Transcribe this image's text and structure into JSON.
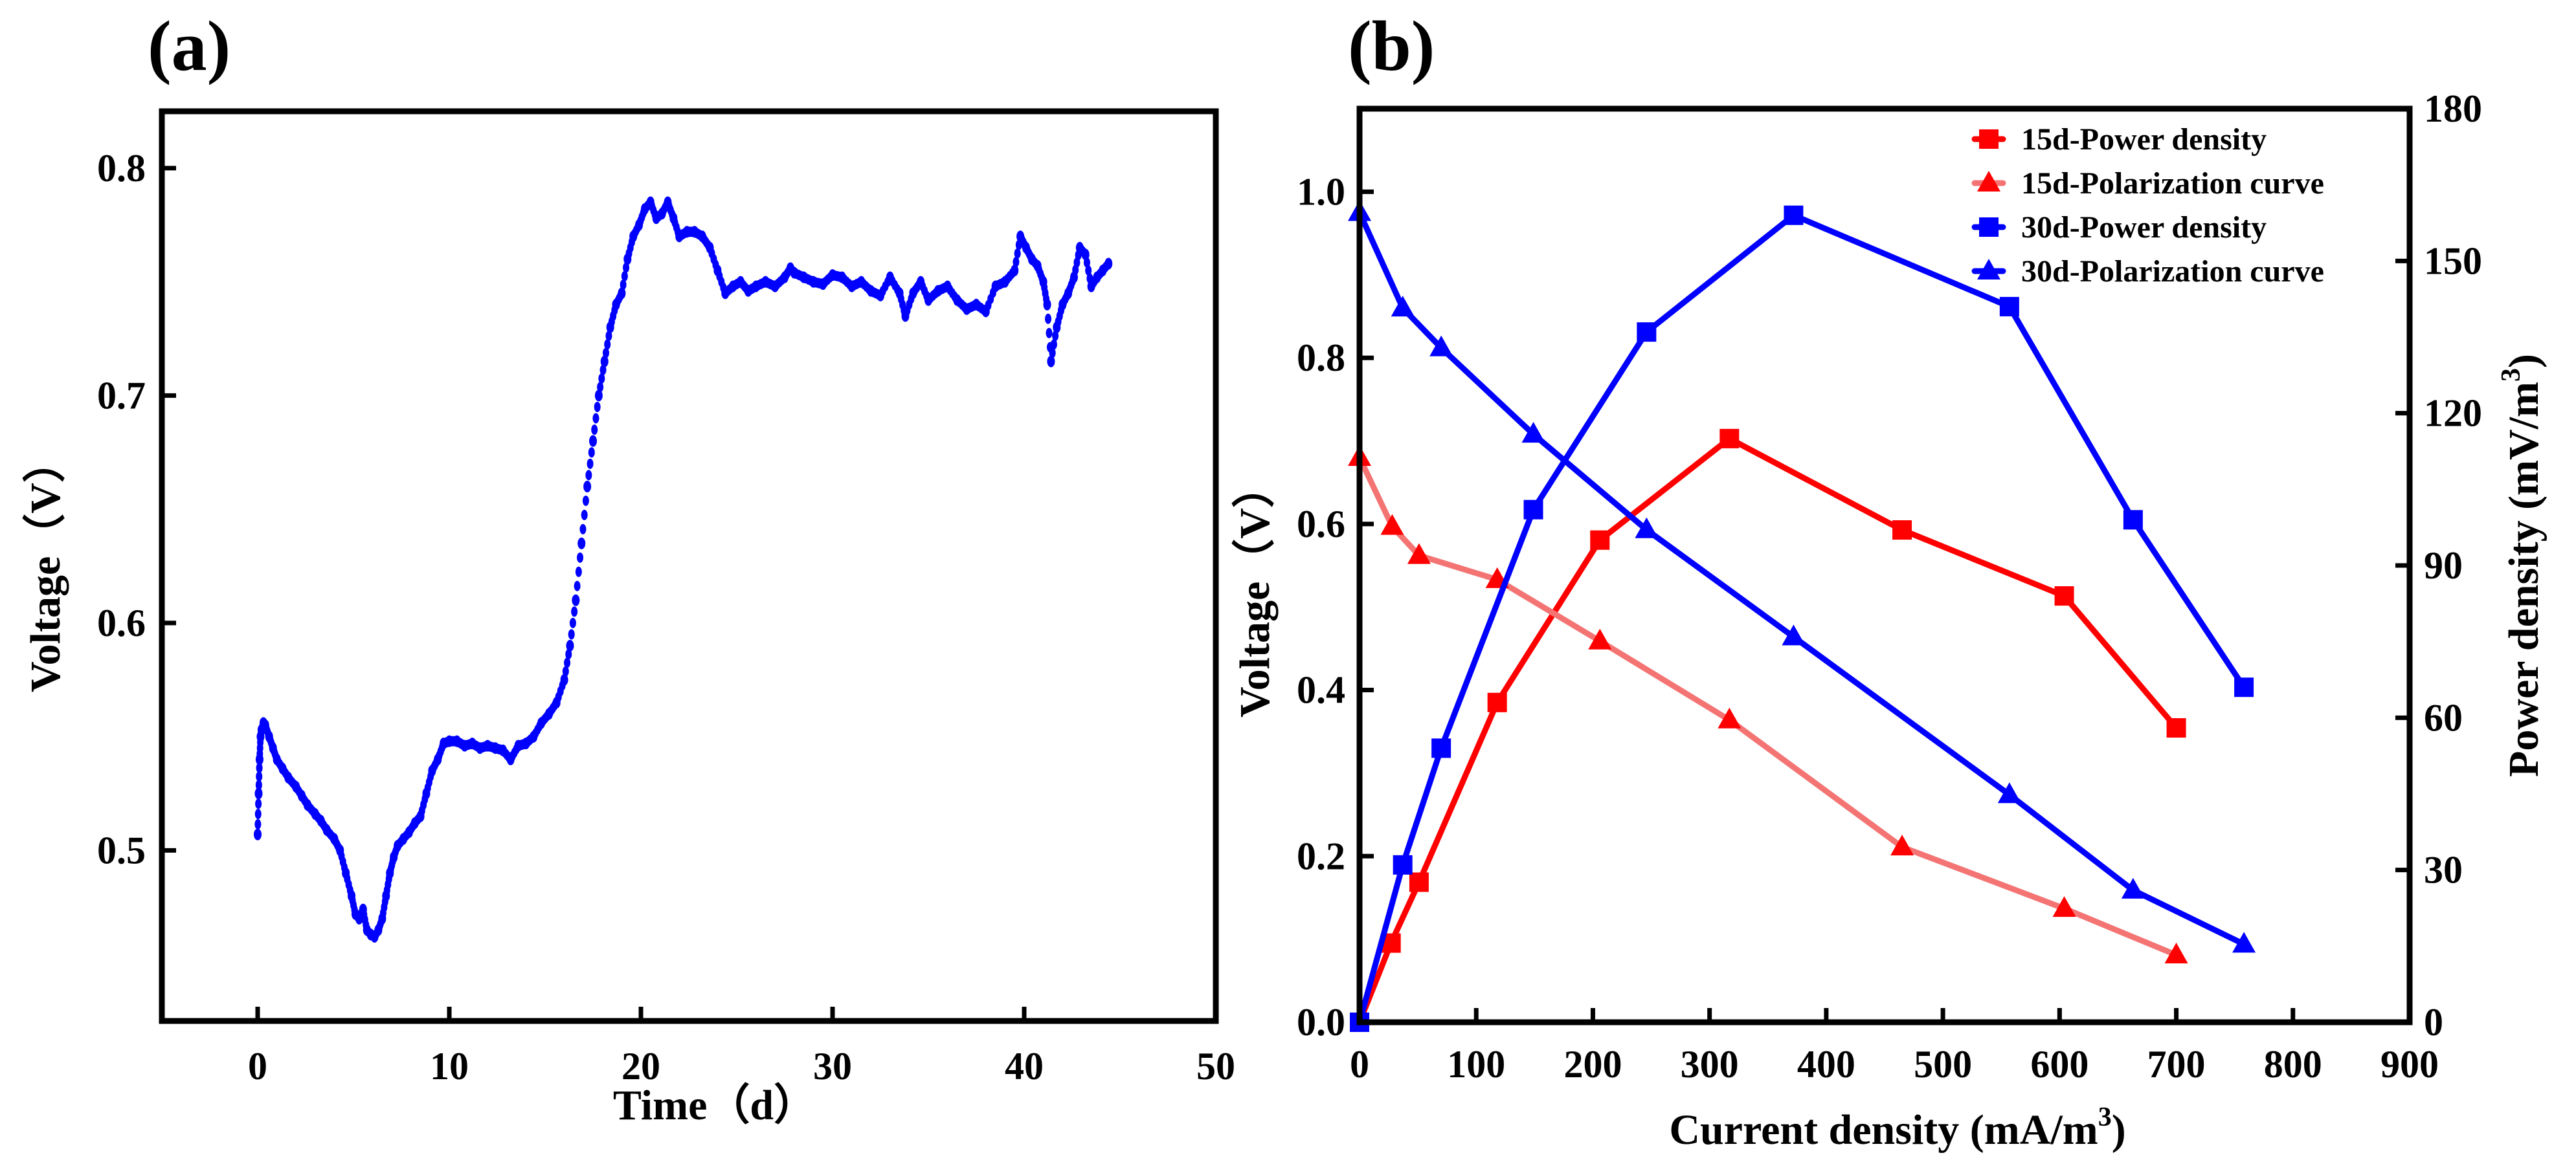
{
  "chart_data": [
    {
      "panel_label": "(a)",
      "type": "scatter",
      "title": "",
      "xlabel": "Time（d）",
      "ylabel": "Voltage（V）",
      "xlim": [
        -5,
        50
      ],
      "ylim": [
        0.425,
        0.825
      ],
      "xticks": [
        "0",
        "10",
        "20",
        "30",
        "40",
        "50"
      ],
      "xtick_values": [
        0,
        10,
        20,
        30,
        40,
        50
      ],
      "yticks": [
        "0.5",
        "0.6",
        "0.7",
        "0.8"
      ],
      "ytick_values": [
        0.5,
        0.6,
        0.7,
        0.8
      ],
      "grid": false,
      "marker_color": "#0000ff",
      "series": [
        {
          "name": "Voltage",
          "x": [
            0.0,
            0.05,
            0.1,
            0.15,
            0.2,
            0.3,
            0.4,
            0.6,
            0.8,
            1.0,
            1.3,
            1.6,
            2.0,
            2.3,
            2.6,
            3.0,
            3.3,
            3.6,
            4.0,
            4.3,
            4.6,
            4.9,
            5.1,
            5.3,
            5.5,
            5.7,
            5.9,
            6.1,
            6.3,
            6.5,
            6.7,
            6.9,
            7.1,
            7.3,
            7.6,
            7.9,
            8.2,
            8.5,
            8.8,
            9.1,
            9.4,
            9.7,
            10.0,
            10.4,
            10.8,
            11.2,
            11.6,
            12.0,
            12.4,
            12.8,
            13.2,
            13.6,
            14.0,
            14.4,
            14.8,
            15.2,
            15.6,
            16.0,
            16.3,
            16.6,
            16.9,
            17.2,
            17.5,
            17.8,
            18.1,
            18.4,
            18.7,
            19.0,
            19.3,
            19.6,
            19.9,
            20.2,
            20.5,
            20.8,
            21.1,
            21.4,
            21.7,
            22.0,
            22.4,
            22.8,
            23.2,
            23.6,
            24.0,
            24.4,
            24.8,
            25.2,
            25.6,
            26.0,
            26.5,
            27.0,
            27.5,
            27.8,
            28.0,
            28.5,
            29.0,
            29.5,
            30.0,
            30.5,
            31.0,
            31.5,
            32.0,
            32.5,
            33.0,
            33.5,
            33.8,
            34.2,
            34.6,
            35.0,
            35.5,
            36.0,
            36.5,
            37.0,
            37.5,
            38.0,
            38.5,
            39.0,
            39.5,
            39.8,
            40.1,
            40.4,
            40.7,
            41.0,
            41.2,
            41.4,
            41.7,
            42.0,
            42.3,
            42.6,
            42.9,
            43.2,
            43.5,
            43.8,
            44.1,
            44.4
          ],
          "y": [
            0.507,
            0.525,
            0.54,
            0.55,
            0.553,
            0.556,
            0.555,
            0.55,
            0.545,
            0.54,
            0.536,
            0.532,
            0.528,
            0.524,
            0.52,
            0.516,
            0.513,
            0.509,
            0.505,
            0.5,
            0.49,
            0.48,
            0.472,
            0.47,
            0.474,
            0.465,
            0.463,
            0.462,
            0.465,
            0.47,
            0.48,
            0.49,
            0.497,
            0.502,
            0.505,
            0.508,
            0.512,
            0.515,
            0.525,
            0.535,
            0.54,
            0.547,
            0.548,
            0.548,
            0.546,
            0.547,
            0.545,
            0.546,
            0.545,
            0.544,
            0.54,
            0.546,
            0.547,
            0.55,
            0.556,
            0.56,
            0.565,
            0.575,
            0.59,
            0.61,
            0.635,
            0.66,
            0.68,
            0.7,
            0.715,
            0.73,
            0.74,
            0.745,
            0.76,
            0.77,
            0.775,
            0.782,
            0.785,
            0.778,
            0.78,
            0.785,
            0.778,
            0.77,
            0.772,
            0.772,
            0.77,
            0.765,
            0.755,
            0.745,
            0.748,
            0.75,
            0.746,
            0.748,
            0.75,
            0.748,
            0.752,
            0.756,
            0.754,
            0.752,
            0.75,
            0.749,
            0.753,
            0.752,
            0.748,
            0.75,
            0.746,
            0.744,
            0.752,
            0.745,
            0.735,
            0.745,
            0.75,
            0.742,
            0.746,
            0.748,
            0.742,
            0.738,
            0.74,
            0.737,
            0.748,
            0.75,
            0.755,
            0.77,
            0.765,
            0.76,
            0.757,
            0.75,
            0.74,
            0.715,
            0.73,
            0.74,
            0.745,
            0.752,
            0.765,
            0.762,
            0.748,
            0.752,
            0.755,
            0.758
          ]
        }
      ]
    },
    {
      "panel_label": "(b)",
      "type": "line",
      "title": "",
      "xlabel": "Current density (mA/m",
      "xlabel_sup": "3",
      "xlabel_end": ")",
      "ylabel": "Voltage（V）",
      "y2label": "Power density (mV/m",
      "y2label_sup": "3",
      "y2label_end": ")",
      "xlim": [
        0,
        900
      ],
      "ylim": [
        0.0,
        1.1
      ],
      "y2lim": [
        0,
        180
      ],
      "xticks": [
        "0",
        "100",
        "200",
        "300",
        "400",
        "500",
        "600",
        "700",
        "800",
        "900"
      ],
      "xtick_values": [
        0,
        100,
        200,
        300,
        400,
        500,
        600,
        700,
        800,
        900
      ],
      "yticks": [
        "0.0",
        "0.2",
        "0.4",
        "0.6",
        "0.8",
        "1.0"
      ],
      "ytick_values": [
        0.0,
        0.2,
        0.4,
        0.6,
        0.8,
        1.0
      ],
      "y2ticks": [
        "0",
        "30",
        "60",
        "90",
        "120",
        "150",
        "180"
      ],
      "y2tick_values": [
        0,
        30,
        60,
        90,
        120,
        150,
        180
      ],
      "grid": false,
      "legend_position": "top-right",
      "series": [
        {
          "name": "15d-Power density",
          "axis": "right",
          "marker": "square",
          "line_color": "#ff0000",
          "marker_color": "#ff0000",
          "x": [
            0,
            27,
            51,
            118,
            206,
            317,
            465,
            604,
            700
          ],
          "y": [
            0,
            15.6,
            27.6,
            63,
            95,
            115,
            97,
            84,
            58
          ]
        },
        {
          "name": "15d-Polarization curve",
          "axis": "left",
          "marker": "triangle",
          "line_color": "#f47474",
          "marker_color": "#ff0000",
          "x": [
            0,
            28,
            51,
            118,
            206,
            317,
            465,
            604,
            700
          ],
          "y": [
            0.68,
            0.597,
            0.562,
            0.533,
            0.459,
            0.364,
            0.211,
            0.137,
            0.081
          ]
        },
        {
          "name": "30d-Power density",
          "axis": "right",
          "marker": "square",
          "line_color": "#0000ff",
          "marker_color": "#0000ff",
          "x": [
            0,
            37,
            70,
            149,
            246,
            372,
            557,
            663,
            758
          ],
          "y": [
            0,
            31,
            54,
            101,
            136,
            159,
            141,
            99,
            66
          ]
        },
        {
          "name": "30d-Polarization curve",
          "axis": "left",
          "marker": "triangle",
          "line_color": "#0000ff",
          "marker_color": "#0000ff",
          "x": [
            0,
            37,
            70,
            149,
            246,
            372,
            557,
            663,
            758
          ],
          "y": [
            0.975,
            0.86,
            0.812,
            0.708,
            0.593,
            0.464,
            0.274,
            0.159,
            0.094
          ]
        }
      ]
    }
  ]
}
